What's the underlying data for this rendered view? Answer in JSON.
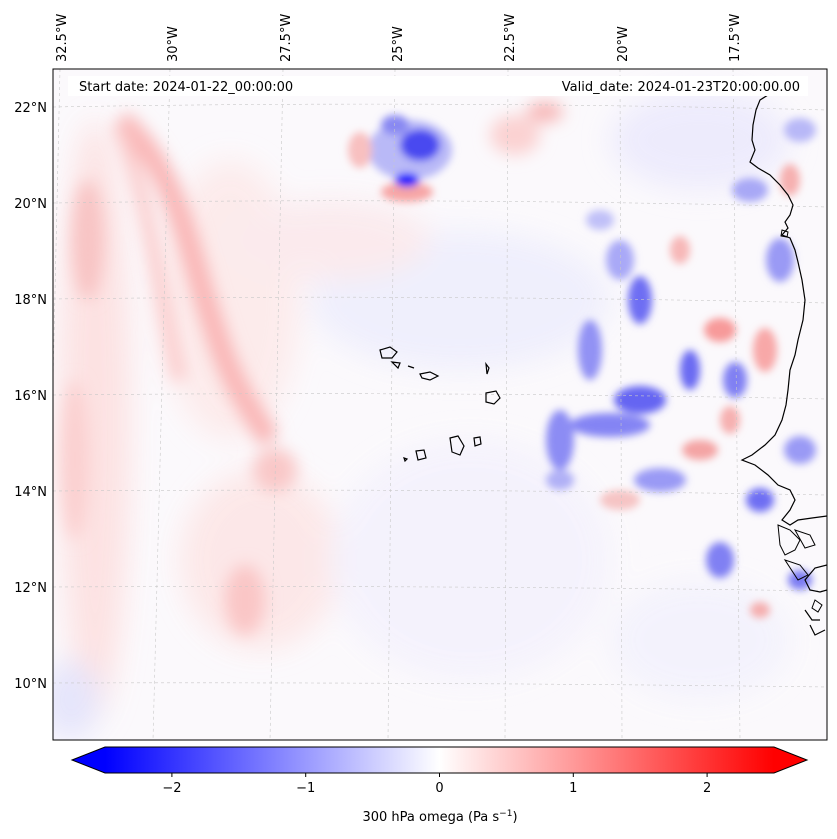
{
  "map": {
    "start_label": "Start date: 2024-01-22_00:00:00",
    "valid_label": "Valid_date: 2024-01-23T20:00:00.00",
    "lon_labels": [
      "32.5°W",
      "30°W",
      "27.5°W",
      "25°W",
      "22.5°W",
      "20°W",
      "17.5°W"
    ],
    "lat_labels": [
      "22°N",
      "20°N",
      "18°N",
      "16°N",
      "14°N",
      "12°N",
      "10°N"
    ],
    "variable": "300 hPa omega"
  },
  "colorbar": {
    "label_text": "300 hPa omega (Pa s",
    "label_exponent": "−1",
    "label_suffix": ")",
    "ticks": [
      "−2",
      "−1",
      "0",
      "1",
      "2"
    ],
    "min": -2.5,
    "max": 2.5,
    "tick_values": [
      -2,
      -1,
      0,
      1,
      2
    ],
    "low_color": "#0000ff",
    "mid_color": "#ffffff",
    "high_color": "#ff0000"
  }
}
